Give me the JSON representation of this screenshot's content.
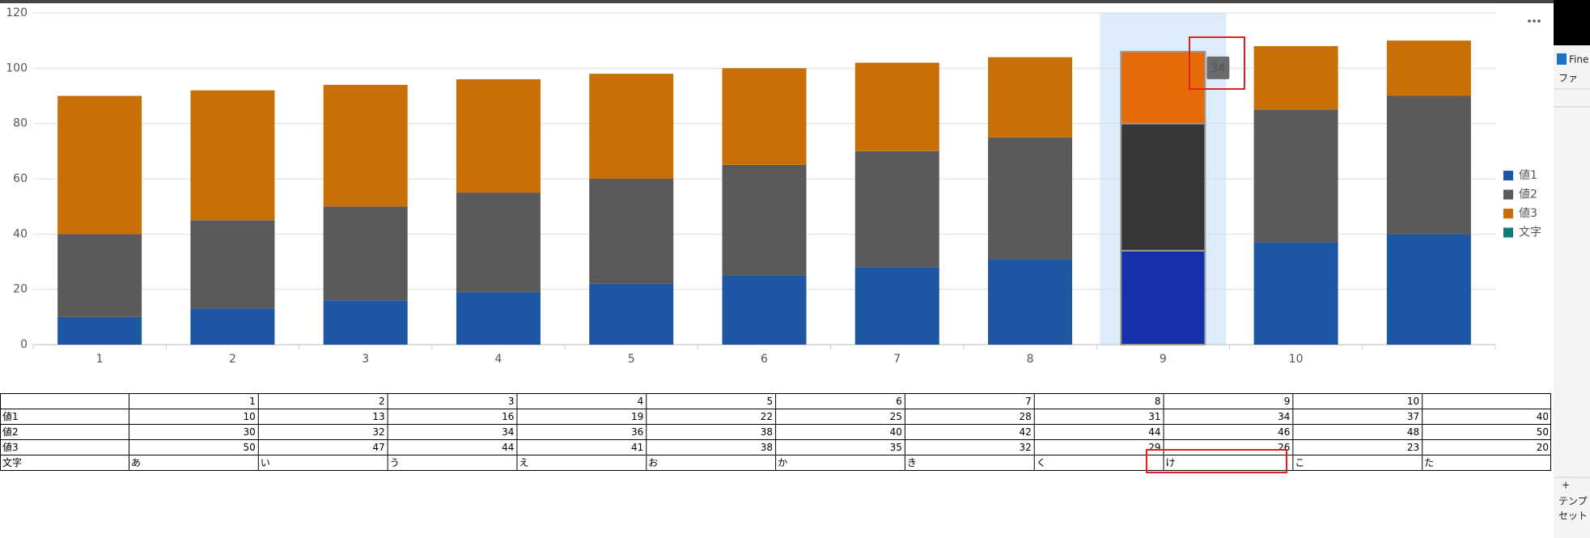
{
  "chart_data": {
    "type": "bar",
    "stacked": true,
    "categories": [
      "1",
      "2",
      "3",
      "4",
      "5",
      "6",
      "7",
      "8",
      "9",
      "10",
      null
    ],
    "series": [
      {
        "name": "値1",
        "color": "#1d56a3",
        "values": [
          10,
          13,
          16,
          19,
          22,
          25,
          28,
          31,
          34,
          37,
          40
        ]
      },
      {
        "name": "値2",
        "color": "#5a5a5a",
        "values": [
          30,
          32,
          34,
          36,
          38,
          40,
          42,
          44,
          46,
          48,
          50
        ]
      },
      {
        "name": "値3",
        "color": "#c96f08",
        "values": [
          50,
          47,
          44,
          41,
          38,
          35,
          32,
          29,
          26,
          23,
          20
        ]
      },
      {
        "name": "文字",
        "color": "#127a78",
        "values": [
          "あ",
          "い",
          "う",
          "え",
          "お",
          "か",
          "き",
          "く",
          "け",
          "こ",
          "た"
        ]
      }
    ],
    "ylim": [
      0,
      120
    ],
    "yticks": [
      0,
      20,
      40,
      60,
      80,
      100,
      120
    ],
    "grid": true,
    "legend": "right",
    "highlight_index": 8
  },
  "side_panel": {
    "items": [
      "Fine",
      "ファ",
      "テンプ",
      "セット"
    ]
  }
}
